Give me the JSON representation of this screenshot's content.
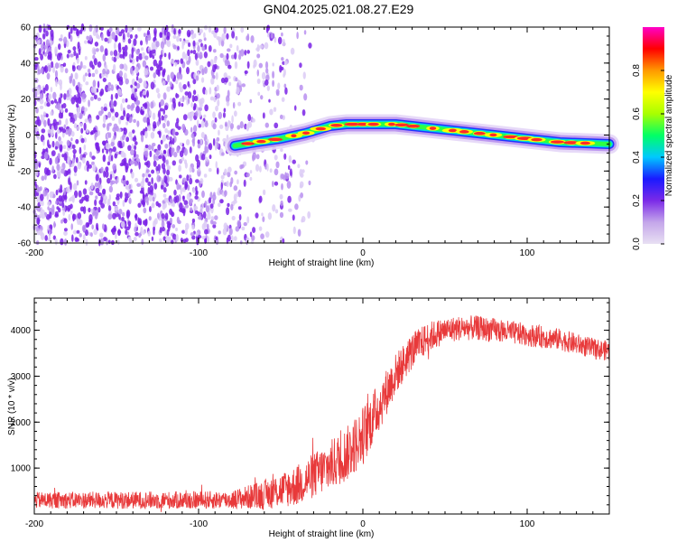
{
  "title": "GN04.2025.021.08.27.E29",
  "colors": {
    "snr_line": "#e8393a",
    "spectral_scatter": "#7a22e6",
    "colorbar_stops": [
      "#e8e0f3",
      "#c4a6ea",
      "#7b2ae8",
      "#1a1aff",
      "#00c8ff",
      "#00ff66",
      "#a8ff00",
      "#ffff00",
      "#ff9900",
      "#ff0000",
      "#ff00c8"
    ]
  },
  "chart_data": [
    {
      "type": "heatmap",
      "name": "spectrogram",
      "xlabel": "Height of straight line (km)",
      "ylabel": "Frequency (Hz)",
      "xlim": [
        -200,
        150
      ],
      "ylim": [
        -60,
        60
      ],
      "x_ticks": [
        "-200",
        "-100",
        "0",
        "100"
      ],
      "y_ticks": [
        "60",
        "40",
        "20",
        "0",
        "-20",
        "-40",
        "-60"
      ],
      "ridge_x": [
        -78,
        -65,
        -50,
        -35,
        -20,
        -10,
        0,
        10,
        20,
        40,
        60,
        80,
        100,
        120,
        150
      ],
      "ridge_y": [
        -6,
        -4,
        -2,
        1,
        5,
        6,
        6,
        6,
        6,
        4,
        2,
        0,
        -2,
        -4,
        -5
      ],
      "colorbar": {
        "label": "Normalized spectral amplitude",
        "range": [
          0,
          1
        ],
        "ticks": [
          "0.0",
          "0.2",
          "0.4",
          "0.6",
          "0.8"
        ]
      }
    },
    {
      "type": "line",
      "name": "snr",
      "xlabel": "Height of straight line (km)",
      "ylabel": "SNR (10 * v/v)",
      "xlim": [
        -200,
        150
      ],
      "ylim": [
        0,
        4700
      ],
      "x_ticks": [
        "-200",
        "-100",
        "0",
        "100"
      ],
      "y_ticks": [
        "1000",
        "2000",
        "3000",
        "4000"
      ],
      "trend_x": [
        -200,
        -150,
        -100,
        -80,
        -60,
        -40,
        -20,
        -10,
        0,
        10,
        20,
        30,
        40,
        50,
        60,
        70,
        80,
        90,
        100,
        110,
        120,
        130,
        140,
        150
      ],
      "trend_y": [
        300,
        300,
        300,
        310,
        420,
        620,
        1050,
        1300,
        1700,
        2350,
        3050,
        3550,
        3850,
        4000,
        4050,
        4050,
        4000,
        3950,
        3900,
        3850,
        3800,
        3700,
        3600,
        3550
      ],
      "noise_amp_x": [
        -200,
        -80,
        -40,
        0,
        20,
        50,
        150
      ],
      "noise_amp_y": [
        180,
        200,
        450,
        650,
        450,
        280,
        220
      ]
    }
  ]
}
